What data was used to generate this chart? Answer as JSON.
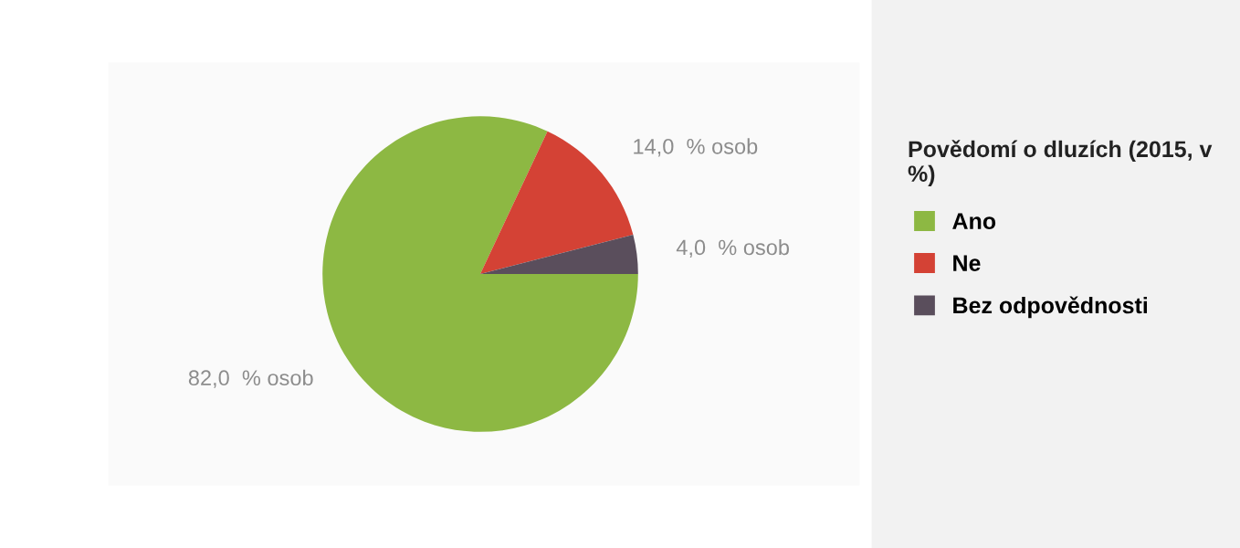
{
  "chart_data": {
    "type": "pie",
    "title": "Povědomí o dluzích (2015, v %)",
    "categories": [
      "Ano",
      "Ne",
      "Bez odpovědnosti"
    ],
    "values": [
      82.0,
      14.0,
      4.0
    ],
    "colors": [
      "#8db843",
      "#d44235",
      "#5a4e5c"
    ],
    "value_labels": [
      "82,0  % osob",
      "14,0  % osob",
      "4,0  % osob"
    ],
    "legend": "right"
  }
}
